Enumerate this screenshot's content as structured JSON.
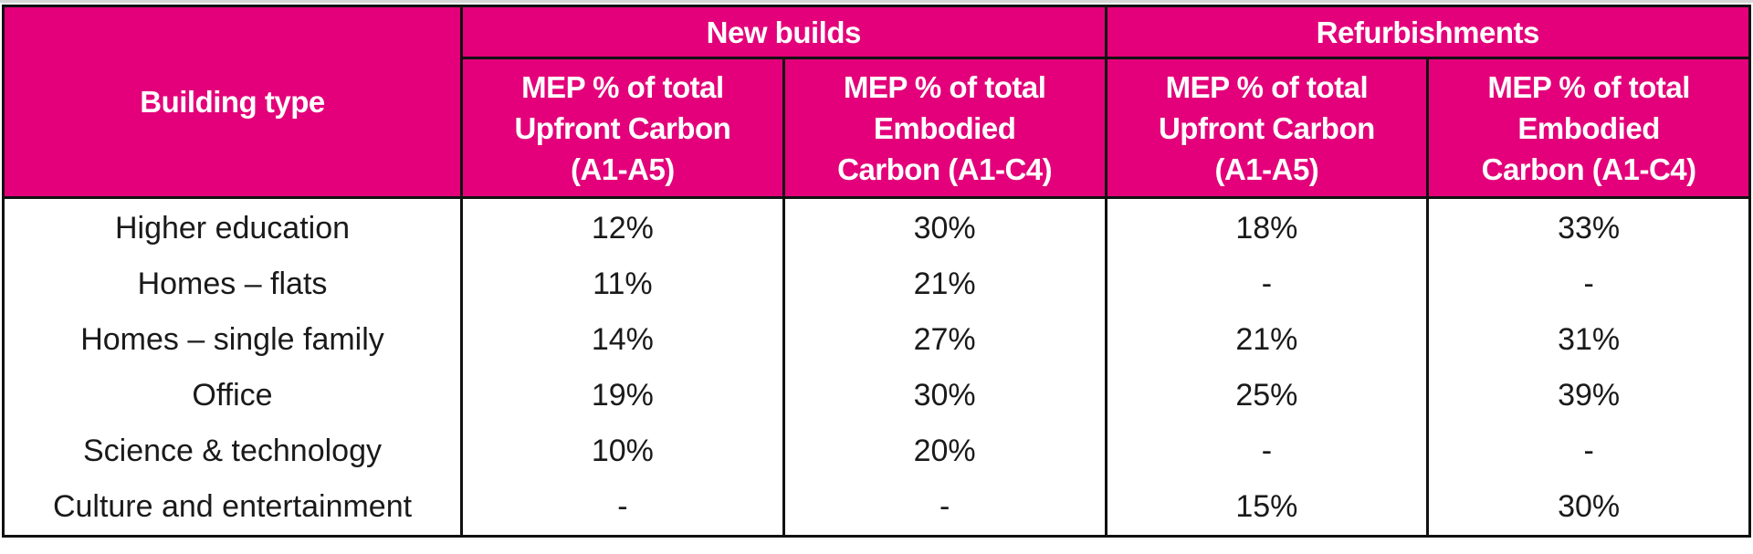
{
  "table": {
    "corner_header": "Building type",
    "groups": [
      {
        "label": "New builds",
        "span": 2
      },
      {
        "label": "Refurbishments",
        "span": 2
      }
    ],
    "sub_headers": [
      "MEP % of total Upfront Carbon (A1-A5)",
      "MEP % of total Embodied Carbon (A1-C4)",
      "MEP % of total Upfront Carbon (A1-A5)",
      "MEP % of total Embodied Carbon (A1-C4)"
    ],
    "sub_header_lines": [
      [
        "MEP % of total",
        "Upfront Carbon",
        "(A1-A5)"
      ],
      [
        "MEP % of total",
        "Embodied",
        "Carbon (A1-C4)"
      ],
      [
        "MEP % of total",
        "Upfront Carbon",
        "(A1-A5)"
      ],
      [
        "MEP % of total",
        "Embodied",
        "Carbon (A1-C4)"
      ]
    ],
    "rows": [
      {
        "type": "Higher education",
        "values": [
          "12%",
          "30%",
          "18%",
          "33%"
        ]
      },
      {
        "type": "Homes – flats",
        "values": [
          "11%",
          "21%",
          "-",
          "-"
        ]
      },
      {
        "type": "Homes – single family",
        "values": [
          "14%",
          "27%",
          "21%",
          "31%"
        ]
      },
      {
        "type": "Office",
        "values": [
          "19%",
          "30%",
          "25%",
          "39%"
        ]
      },
      {
        "type": "Science & technology",
        "values": [
          "10%",
          "20%",
          "-",
          "-"
        ]
      },
      {
        "type": "Culture and entertainment",
        "values": [
          "-",
          "-",
          "15%",
          "30%"
        ]
      }
    ]
  },
  "colors": {
    "header_background": "#E3007A",
    "header_text": "#FFFFFF",
    "border": "#111111",
    "body_text": "#1A1A1A"
  }
}
